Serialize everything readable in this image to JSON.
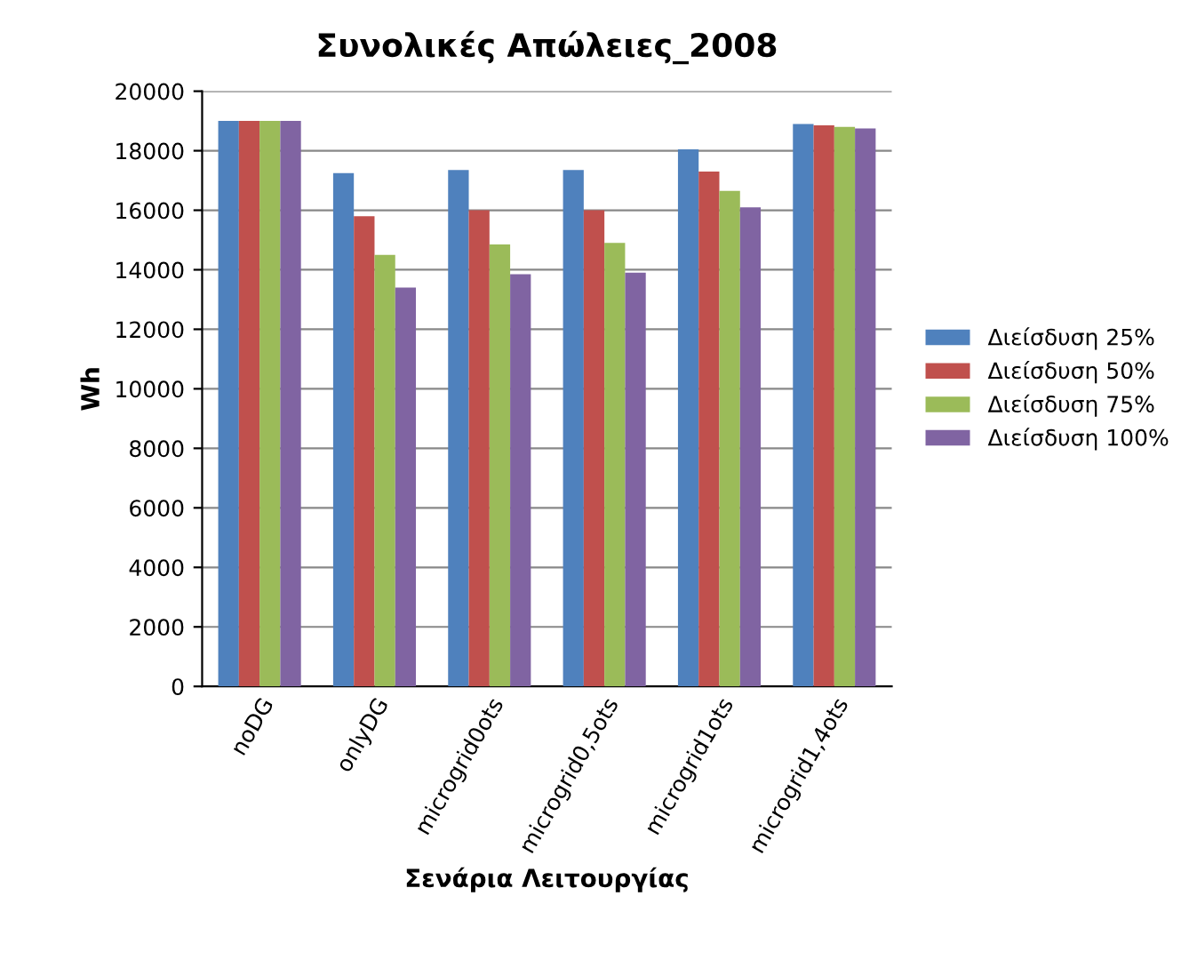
{
  "chart_data": {
    "type": "bar",
    "title": "Συνολικές Απώλειες_2008",
    "xlabel": "Σενάρια Λειτουργίας",
    "ylabel": "Wh",
    "categories": [
      "noDG",
      "onlyDG",
      "microgrid0ots",
      "microgrid0,5ots",
      "microgrid1ots",
      "microgrid1,4ots"
    ],
    "series": [
      {
        "name": "Διείσδυση 25%",
        "color": "#4f81bd",
        "values": [
          19000,
          17250,
          17350,
          17350,
          18050,
          18900
        ]
      },
      {
        "name": "Διείσδυση 50%",
        "color": "#c0504d",
        "values": [
          19000,
          15800,
          16000,
          16000,
          17300,
          18850
        ]
      },
      {
        "name": "Διείσδυση 75%",
        "color": "#9bbb59",
        "values": [
          19000,
          14500,
          14850,
          14900,
          16650,
          18800
        ]
      },
      {
        "name": "Διείσδυση 100%",
        "color": "#8064a2",
        "values": [
          19000,
          13400,
          13850,
          13900,
          16100,
          18750
        ]
      }
    ],
    "ylim": [
      0,
      20000
    ],
    "yticks": [
      0,
      2000,
      4000,
      6000,
      8000,
      10000,
      12000,
      14000,
      16000,
      18000,
      20000
    ],
    "grid": "y",
    "legend": "right"
  }
}
